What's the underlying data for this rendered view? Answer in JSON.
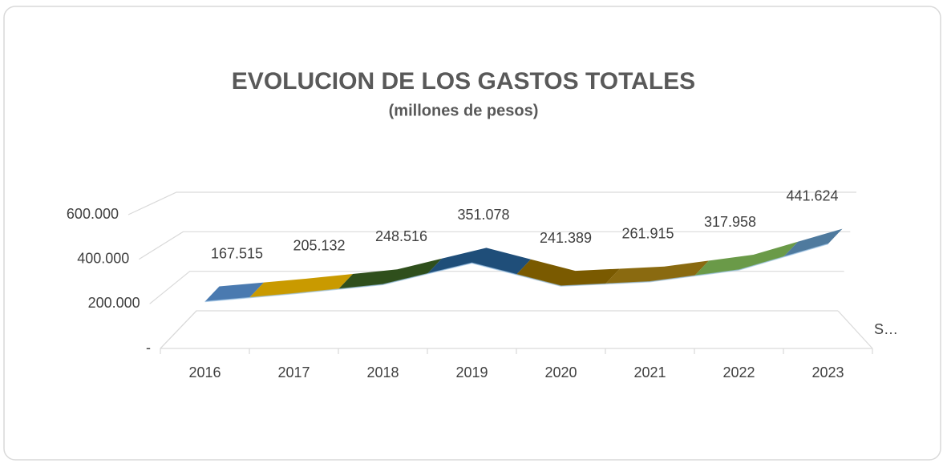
{
  "chart_data": {
    "type": "line3d",
    "title": "EVOLUCION DE LOS GASTOS TOTALES",
    "subtitle": "(millones de pesos)",
    "categories": [
      "2016",
      "2017",
      "2018",
      "2019",
      "2020",
      "2021",
      "2022",
      "2023"
    ],
    "series": [
      {
        "name": "S…",
        "values": [
          167515,
          205132,
          248516,
          351078,
          241389,
          261915,
          317958,
          441624
        ],
        "value_labels": [
          "167.515",
          "205.132",
          "248.516",
          "351.078",
          "241.389",
          "261.915",
          "317.958",
          "441.624"
        ],
        "colors": [
          "#4a7ab0",
          "#c99a00",
          "#2f4f1c",
          "#1f4e79",
          "#7a5a00",
          "#8a6a10",
          "#6a9a48",
          "#4f7a9e"
        ]
      }
    ],
    "ylim": [
      0,
      600000
    ],
    "yticks": [
      {
        "value": 0,
        "label": "-"
      },
      {
        "value": 200000,
        "label": "200.000"
      },
      {
        "value": 400000,
        "label": "400.000"
      },
      {
        "value": 600000,
        "label": "600.000"
      }
    ],
    "grid": true
  }
}
